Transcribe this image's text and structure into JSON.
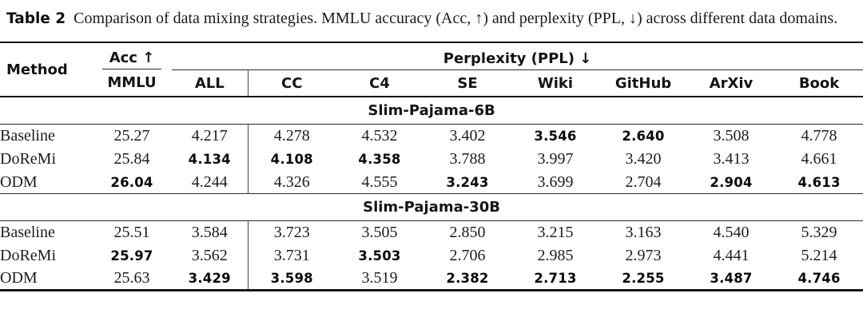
{
  "caption": {
    "tag": "Table 2",
    "text": "Comparison of data mixing strategies. MMLU accuracy (Acc, ↑) and perplexity (PPL, ↓) across different data domains."
  },
  "table": {
    "method_header": "Method",
    "acc_header": "Acc ↑",
    "acc_subheader": "MMLU",
    "ppl_header": "Perplexity (PPL) ↓",
    "ppl_columns": [
      "ALL",
      "CC",
      "C4",
      "SE",
      "Wiki",
      "GitHub",
      "ArXiv",
      "Book"
    ],
    "sections": [
      {
        "title": "Slim-Pajama-6B",
        "rows": [
          {
            "method": "Baseline",
            "acc": {
              "v": "25.27",
              "b": false
            },
            "ppl": [
              {
                "v": "4.217",
                "b": false
              },
              {
                "v": "4.278",
                "b": false
              },
              {
                "v": "4.532",
                "b": false
              },
              {
                "v": "3.402",
                "b": false
              },
              {
                "v": "3.546",
                "b": true
              },
              {
                "v": "2.640",
                "b": true
              },
              {
                "v": "3.508",
                "b": false
              },
              {
                "v": "4.778",
                "b": false
              }
            ]
          },
          {
            "method": "DoReMi",
            "acc": {
              "v": "25.84",
              "b": false
            },
            "ppl": [
              {
                "v": "4.134",
                "b": true
              },
              {
                "v": "4.108",
                "b": true
              },
              {
                "v": "4.358",
                "b": true
              },
              {
                "v": "3.788",
                "b": false
              },
              {
                "v": "3.997",
                "b": false
              },
              {
                "v": "3.420",
                "b": false
              },
              {
                "v": "3.413",
                "b": false
              },
              {
                "v": "4.661",
                "b": false
              }
            ]
          },
          {
            "method": "ODM",
            "acc": {
              "v": "26.04",
              "b": true
            },
            "ppl": [
              {
                "v": "4.244",
                "b": false
              },
              {
                "v": "4.326",
                "b": false
              },
              {
                "v": "4.555",
                "b": false
              },
              {
                "v": "3.243",
                "b": true
              },
              {
                "v": "3.699",
                "b": false
              },
              {
                "v": "2.704",
                "b": false
              },
              {
                "v": "2.904",
                "b": true
              },
              {
                "v": "4.613",
                "b": true
              }
            ]
          }
        ]
      },
      {
        "title": "Slim-Pajama-30B",
        "rows": [
          {
            "method": "Baseline",
            "acc": {
              "v": "25.51",
              "b": false
            },
            "ppl": [
              {
                "v": "3.584",
                "b": false
              },
              {
                "v": "3.723",
                "b": false
              },
              {
                "v": "3.505",
                "b": false
              },
              {
                "v": "2.850",
                "b": false
              },
              {
                "v": "3.215",
                "b": false
              },
              {
                "v": "3.163",
                "b": false
              },
              {
                "v": "4.540",
                "b": false
              },
              {
                "v": "5.329",
                "b": false
              }
            ]
          },
          {
            "method": "DoReMi",
            "acc": {
              "v": "25.97",
              "b": true
            },
            "ppl": [
              {
                "v": "3.562",
                "b": false
              },
              {
                "v": "3.731",
                "b": false
              },
              {
                "v": "3.503",
                "b": true
              },
              {
                "v": "2.706",
                "b": false
              },
              {
                "v": "2.985",
                "b": false
              },
              {
                "v": "2.973",
                "b": false
              },
              {
                "v": "4.441",
                "b": false
              },
              {
                "v": "5.214",
                "b": false
              }
            ]
          },
          {
            "method": "ODM",
            "acc": {
              "v": "25.63",
              "b": false
            },
            "ppl": [
              {
                "v": "3.429",
                "b": true
              },
              {
                "v": "3.598",
                "b": true
              },
              {
                "v": "3.519",
                "b": false
              },
              {
                "v": "2.382",
                "b": true
              },
              {
                "v": "2.713",
                "b": true
              },
              {
                "v": "2.255",
                "b": true
              },
              {
                "v": "3.487",
                "b": true
              },
              {
                "v": "4.746",
                "b": true
              }
            ]
          }
        ]
      }
    ]
  },
  "colors": {
    "background": "#ffffff",
    "text": "#1c1c1c",
    "rule": "#161616",
    "divider": "#4a4a4a"
  }
}
